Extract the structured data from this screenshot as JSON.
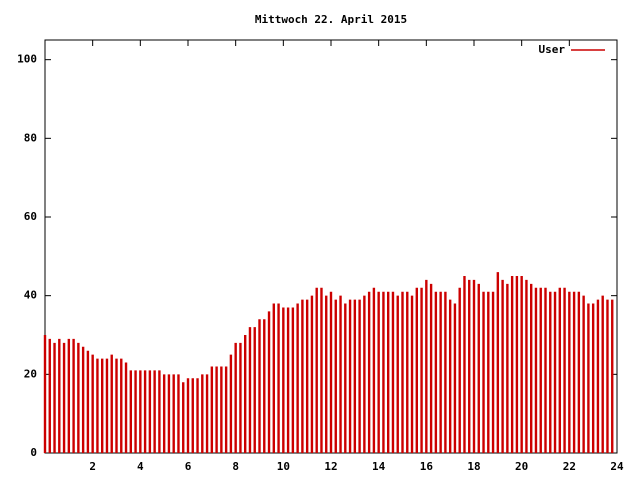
{
  "chart_data": {
    "type": "impulse",
    "title": "Mittwoch 22. April 2015",
    "x": [
      0,
      0.2,
      0.4,
      0.6,
      0.8,
      1,
      1.2,
      1.4,
      1.6,
      1.8,
      2,
      2.2,
      2.4,
      2.6,
      2.8,
      3,
      3.2,
      3.4,
      3.6,
      3.8,
      4,
      4.2,
      4.4,
      4.6,
      4.8,
      5,
      5.2,
      5.4,
      5.6,
      5.8,
      6,
      6.2,
      6.4,
      6.6,
      6.8,
      7,
      7.2,
      7.4,
      7.6,
      7.8,
      8,
      8.2,
      8.4,
      8.6,
      8.8,
      9,
      9.2,
      9.4,
      9.6,
      9.8,
      10,
      10.2,
      10.4,
      10.6,
      10.8,
      11,
      11.2,
      11.4,
      11.6,
      11.8,
      12,
      12.2,
      12.4,
      12.6,
      12.8,
      13,
      13.2,
      13.4,
      13.6,
      13.8,
      14,
      14.2,
      14.4,
      14.6,
      14.8,
      15,
      15.2,
      15.4,
      15.6,
      15.8,
      16,
      16.2,
      16.4,
      16.6,
      16.8,
      17,
      17.2,
      17.4,
      17.6,
      17.8,
      18,
      18.2,
      18.4,
      18.6,
      18.8,
      19,
      19.2,
      19.4,
      19.6,
      19.8,
      20,
      20.2,
      20.4,
      20.6,
      20.8,
      21,
      21.2,
      21.4,
      21.6,
      21.8,
      22,
      22.2,
      22.4,
      22.6,
      22.8,
      23,
      23.2,
      23.4,
      23.6,
      23.8
    ],
    "series": [
      {
        "name": "User",
        "color": "#cc0000",
        "values": [
          30,
          29,
          28,
          29,
          28,
          29,
          29,
          28,
          27,
          26,
          25,
          24,
          24,
          24,
          25,
          24,
          24,
          23,
          21,
          21,
          21,
          21,
          21,
          21,
          21,
          20,
          20,
          20,
          20,
          18,
          19,
          19,
          19,
          20,
          20,
          22,
          22,
          22,
          22,
          25,
          28,
          28,
          30,
          32,
          32,
          34,
          34,
          36,
          38,
          38,
          37,
          37,
          37,
          38,
          39,
          39,
          40,
          42,
          42,
          40,
          41,
          39,
          40,
          38,
          39,
          39,
          39,
          40,
          41,
          42,
          41,
          41,
          41,
          41,
          40,
          41,
          41,
          40,
          42,
          42,
          44,
          43,
          41,
          41,
          41,
          39,
          38,
          42,
          45,
          44,
          44,
          43,
          41,
          41,
          41,
          46,
          44,
          43,
          45,
          45,
          45,
          44,
          43,
          42,
          42,
          42,
          41,
          41,
          42,
          42,
          41,
          41,
          41,
          40,
          38,
          38,
          39,
          40,
          39,
          39
        ]
      }
    ],
    "xlim": [
      0,
      24
    ],
    "xticks": [
      2,
      4,
      6,
      8,
      10,
      12,
      14,
      16,
      18,
      20,
      22,
      24
    ],
    "ylim": [
      0,
      105
    ],
    "yticks": [
      0,
      20,
      40,
      60,
      80,
      100
    ],
    "legend": "top-right"
  }
}
